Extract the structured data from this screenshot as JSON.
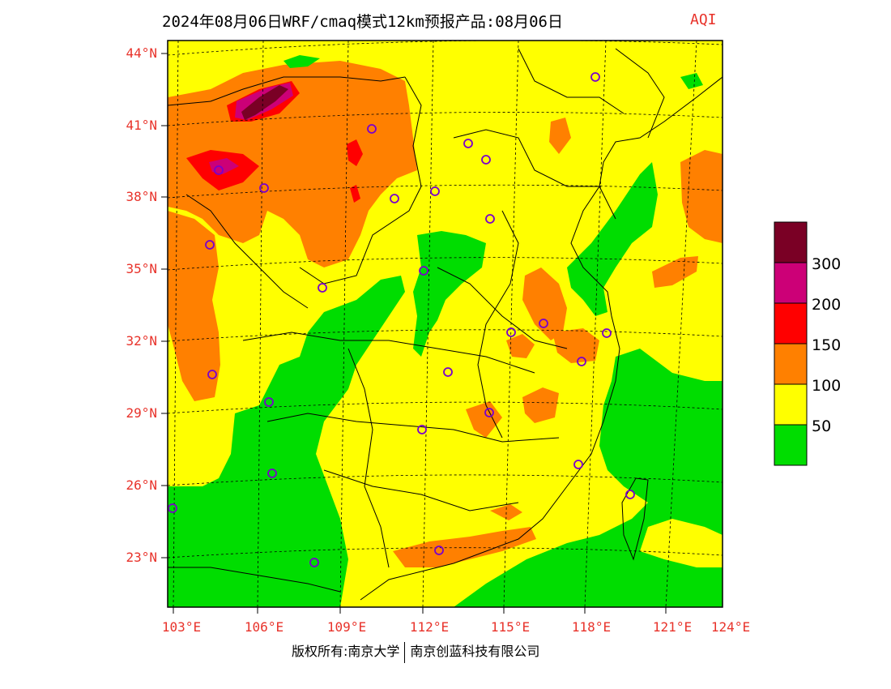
{
  "header": {
    "title": "2024年08月06日WRF/cmaq模式12km预报产品:08月06日",
    "variable": "AQI"
  },
  "map": {
    "latitude_labels": [
      "44°N",
      "41°N",
      "38°N",
      "35°N",
      "32°N",
      "29°N",
      "26°N",
      "23°N"
    ],
    "longitude_labels": [
      "103°E",
      "106°E",
      "109°E",
      "112°E",
      "115°E",
      "118°E",
      "121°E",
      "124°E"
    ],
    "station_marker": "circle-icon",
    "level_colors": {
      "lt50": "#00dd00",
      "50_100": "#ffff00",
      "100_150": "#ff8000",
      "150_200": "#ff0000",
      "200_300": "#cc0077",
      "gt300": "#7a0025"
    }
  },
  "legend": {
    "labels": [
      "300",
      "200",
      "150",
      "100",
      "50"
    ],
    "colors": [
      "#7a0025",
      "#cc0077",
      "#ff0000",
      "#ff8000",
      "#ffff00",
      "#00dd00"
    ]
  },
  "footer": {
    "copyright": "版权所有:南京大学",
    "company": "南京创蓝科技有限公司"
  }
}
